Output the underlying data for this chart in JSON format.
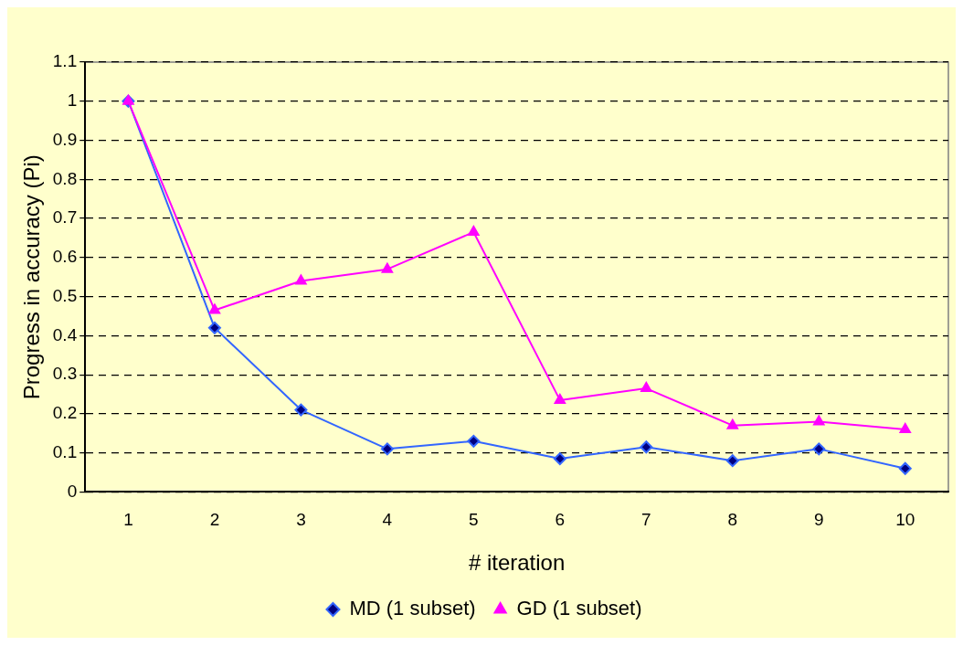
{
  "chart_data": {
    "type": "line",
    "xlabel": "# iteration",
    "ylabel": "Progress in accuracy (Pi)",
    "categories": [
      "1",
      "2",
      "3",
      "4",
      "5",
      "6",
      "7",
      "8",
      "9",
      "10"
    ],
    "series": [
      {
        "name": "MD (1 subset)",
        "color": "#3366ff",
        "marker": "diamond",
        "values": [
          1,
          0.42,
          0.21,
          0.11,
          0.13,
          0.085,
          0.115,
          0.08,
          0.11,
          0.06
        ]
      },
      {
        "name": "GD (1 subset)",
        "color": "#ff00ff",
        "marker": "triangle",
        "values": [
          1,
          0.465,
          0.54,
          0.57,
          0.665,
          0.235,
          0.265,
          0.17,
          0.18,
          0.16
        ]
      }
    ],
    "ylim": [
      0,
      1.1
    ],
    "yticks": [
      0,
      0.1,
      0.2,
      0.3,
      0.4,
      0.5,
      0.6,
      0.7,
      0.8,
      0.9,
      1,
      1.1
    ],
    "grid": "y",
    "legend": "bottom",
    "line_style": "solid"
  }
}
